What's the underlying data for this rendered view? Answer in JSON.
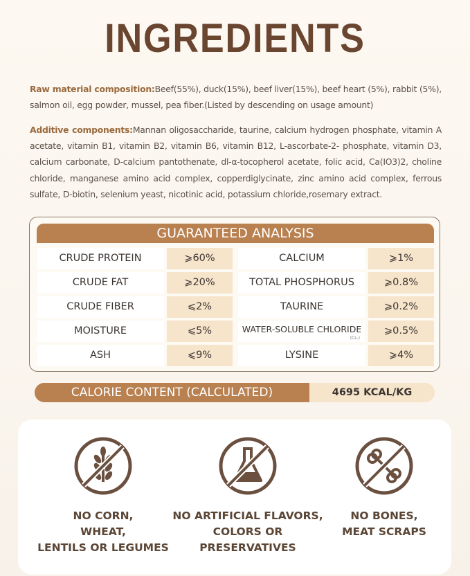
{
  "title": "INGREDIENTS",
  "raw": {
    "label": "Raw material composition:",
    "text": "Beef(55%), duck(15%), beef liver(15%), beef heart (5%), rabbit (5%), salmon oil, egg powder, mussel, pea fiber.(Listed by descending on usage amount)"
  },
  "additive": {
    "label": "Additive components:",
    "text": "Mannan oligosaccharide, taurine, calcium hydrogen phosphate, vitamin A acetate, vitamin B1, vitamin B2, vitamin B6, vitamin B12, L-ascorbate-2- phosphate, vitamin D3, calcium carbonate, D-calcium pantothenate, dl-α-tocopherol acetate, folic acid, Ca(IO3)2, choline chloride, manganese amino acid complex, copperdiglycinate, zinc amino acid complex, ferrous sulfate, D-biotin, selenium yeast, nicotinic acid, potassium chloride,rosemary extract."
  },
  "analysis": {
    "title": "GUARANTEED ANALYSIS",
    "rows": [
      {
        "l1": "CRUDE PROTEIN",
        "v1": "⩾60%",
        "l2": "CALCIUM",
        "v2": "⩾1%"
      },
      {
        "l1": "CRUDE FAT",
        "v1": "⩾20%",
        "l2": "TOTAL PHOSPHORUS",
        "v2": "⩾0.8%"
      },
      {
        "l1": "CRUDE FIBER",
        "v1": "⩽2%",
        "l2": "TAURINE",
        "v2": "⩾0.2%"
      },
      {
        "l1": "MOISTURE",
        "v1": "⩽5%",
        "l2": "WATER-SOLUBLE CHLORIDE",
        "sub": "(CL-)",
        "v2": "⩾0.5%"
      },
      {
        "l1": "ASH",
        "v1": "⩽9%",
        "l2": "LYSINE",
        "v2": "⩾4%"
      }
    ]
  },
  "calorie": {
    "label": "CALORIE CONTENT (CALCULATED)",
    "value": "4695 KCAL/KG"
  },
  "features": [
    {
      "icon": "no-grain-icon",
      "text": "NO CORN,\nWHEAT,\nLENTILS OR LEGUMES"
    },
    {
      "icon": "no-chemical-flask-icon",
      "text": "NO ARTIFICIAL FLAVORS,\nCOLORS OR\nPRESERVATIVES"
    },
    {
      "icon": "no-bone-icon",
      "text": "NO BONES,\nMEAT SCRAPS"
    }
  ],
  "colors": {
    "brown": "#b98050",
    "beige": "#f6e4cb",
    "title": "#6a4530",
    "icon": "#6b5040"
  }
}
